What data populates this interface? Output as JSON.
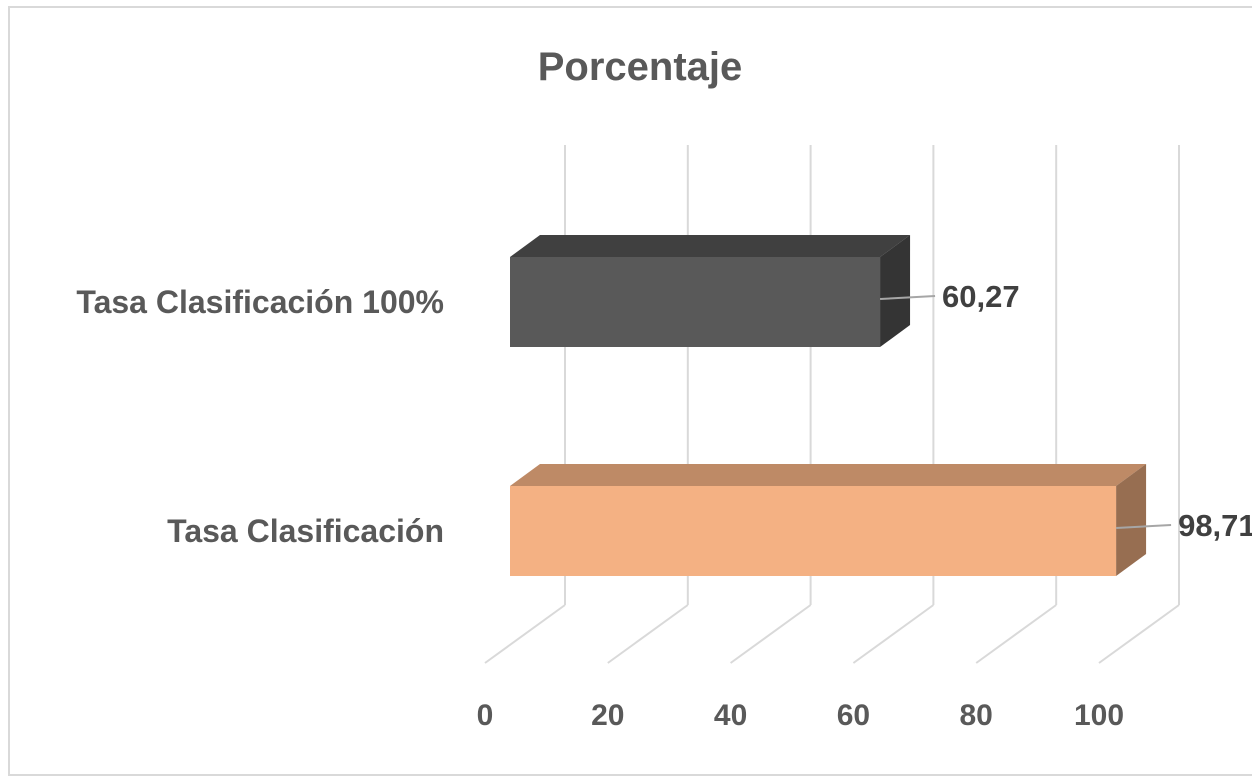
{
  "chart_data": {
    "type": "bar",
    "orientation": "horizontal",
    "style": "3d",
    "title": "Porcentaje",
    "categories": [
      "Tasa Clasificación 100%",
      "Tasa Clasificación"
    ],
    "values": [
      60.27,
      98.71
    ],
    "data_labels": [
      "60,27",
      "98,71"
    ],
    "colors": [
      "#595959",
      "#f4b183"
    ],
    "xlim": [
      0,
      100
    ],
    "x_ticks": [
      "0",
      "20",
      "40",
      "60",
      "80",
      "100"
    ],
    "xlabel": "",
    "ylabel": "",
    "grid": true,
    "legend": "none"
  }
}
